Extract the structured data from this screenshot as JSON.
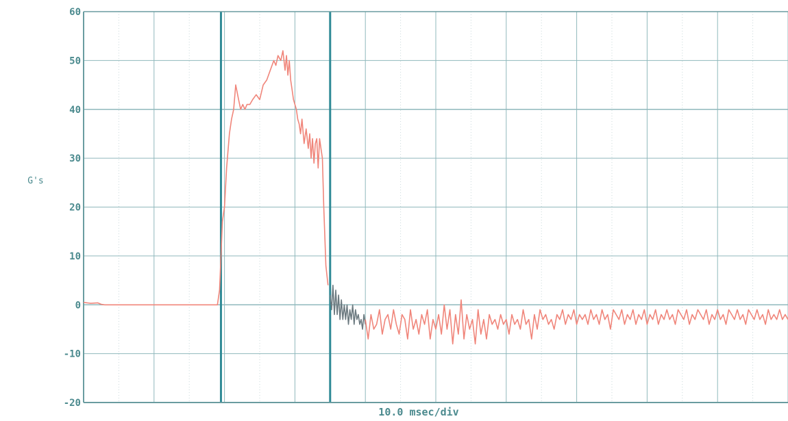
{
  "chart_data": {
    "type": "line",
    "title": "",
    "xlabel": "10.0 msec/div",
    "ylabel": "G's",
    "ylim": [
      -20,
      60
    ],
    "yticks": [
      60,
      50,
      40,
      30,
      20,
      10,
      0,
      -10,
      -20
    ],
    "x_divisions": 10,
    "xlim": [
      0,
      100
    ],
    "x_unit": "msec",
    "grid": true,
    "colors": {
      "background": "#ffffff",
      "grid": "#8fb8bc",
      "grid_minor": "#c9d9da",
      "frame": "#6a9ca0",
      "tick_label": "#4b8a8e",
      "marker": "#2f8a96",
      "trace": "#f0857a",
      "trace_dark": "#6c7a80"
    },
    "markers_x": [
      19.5,
      35.0
    ],
    "series": [
      {
        "color_key": "trace",
        "x": [
          0,
          1,
          2,
          2.5,
          3,
          10,
          19.0,
          19.3,
          19.5,
          19.7,
          20.0,
          20.3,
          20.7,
          21.0,
          21.3,
          21.6,
          22.0,
          22.3,
          22.6,
          22.9,
          23.2,
          23.6,
          24.0,
          24.5,
          25.0,
          25.5,
          26.0,
          26.5,
          27.0,
          27.3,
          27.6,
          28.0,
          28.3,
          28.6,
          28.8,
          29.0,
          29.2,
          29.4,
          29.6,
          29.8,
          30.0,
          30.2,
          30.4,
          30.6,
          30.8,
          31.0,
          31.3,
          31.6,
          31.9,
          32.1,
          32.3,
          32.5,
          32.7,
          32.9,
          33.1,
          33.3,
          33.5,
          33.7,
          33.9,
          34.1,
          34.4,
          34.7
        ],
        "y": [
          0.5,
          0.3,
          0.4,
          0.1,
          0.0,
          0.0,
          0.0,
          3,
          10,
          17,
          20,
          28,
          35,
          38,
          40,
          45,
          42,
          40,
          41,
          40,
          41,
          41,
          42,
          43,
          42,
          45,
          46,
          48,
          50,
          49,
          51,
          50,
          52,
          48,
          51,
          47,
          50,
          46,
          44,
          42,
          41,
          40,
          38,
          37,
          35,
          38,
          33,
          36,
          32,
          35,
          30,
          34,
          29,
          33,
          34,
          28,
          34,
          32,
          30,
          20,
          8,
          4
        ]
      },
      {
        "color_key": "trace_dark",
        "x": [
          35.0,
          35.2,
          35.4,
          35.6,
          35.8,
          36.0,
          36.2,
          36.4,
          36.6,
          36.8,
          37.0,
          37.2,
          37.4,
          37.6,
          37.8,
          38.0,
          38.2,
          38.4,
          38.6,
          38.8,
          39.0,
          39.2,
          39.4,
          39.6,
          39.8,
          40.0
        ],
        "y": [
          2,
          -1,
          4,
          -2,
          3,
          -2,
          2,
          -3,
          1,
          -3,
          0,
          -3,
          0,
          -4,
          -1,
          -3,
          0,
          -4,
          -1,
          -3,
          -2,
          -4,
          -3,
          -5,
          -2,
          -4
        ]
      },
      {
        "color_key": "trace",
        "x": [
          40.0,
          40.4,
          40.8,
          41.2,
          41.6,
          42.0,
          42.4,
          42.8,
          43.2,
          43.6,
          44.0,
          44.4,
          44.8,
          45.2,
          45.6,
          46.0,
          46.4,
          46.8,
          47.2,
          47.6,
          48.0,
          48.4,
          48.8,
          49.2,
          49.6,
          50.0,
          50.4,
          50.8,
          51.2,
          51.6,
          52.0,
          52.4,
          52.8,
          53.2,
          53.6,
          54.0,
          54.4,
          54.8,
          55.2,
          55.6,
          56.0,
          56.4,
          56.8,
          57.2,
          57.6,
          58.0,
          58.4,
          58.8,
          59.2,
          59.6,
          60.0,
          60.4,
          60.8,
          61.2,
          61.6,
          62.0,
          62.4,
          62.8,
          63.2,
          63.6,
          64.0,
          64.4,
          64.8,
          65.2,
          65.6,
          66.0,
          66.4,
          66.8,
          67.2,
          67.6,
          68.0,
          68.4,
          68.8,
          69.2,
          69.6,
          70.0,
          70.4,
          70.8,
          71.2,
          71.6,
          72.0,
          72.4,
          72.8,
          73.2,
          73.6,
          74.0,
          74.4,
          74.8,
          75.2,
          75.6,
          76.0,
          76.4,
          76.8,
          77.2,
          77.6,
          78.0,
          78.4,
          78.8,
          79.2,
          79.6,
          80.0,
          80.4,
          80.8,
          81.2,
          81.6,
          82.0,
          82.4,
          82.8,
          83.2,
          83.6,
          84.0,
          84.4,
          84.8,
          85.2,
          85.6,
          86.0,
          86.4,
          86.8,
          87.2,
          87.6,
          88.0,
          88.4,
          88.8,
          89.2,
          89.6,
          90.0,
          90.4,
          90.8,
          91.2,
          91.6,
          92.0,
          92.4,
          92.8,
          93.2,
          93.6,
          94.0,
          94.4,
          94.8,
          95.2,
          95.6,
          96.0,
          96.4,
          96.8,
          97.2,
          97.6,
          98.0,
          98.4,
          98.8,
          99.2,
          99.6,
          100.0
        ],
        "y": [
          -3,
          -7,
          -2,
          -5,
          -4,
          -1,
          -6,
          -3,
          -2,
          -5,
          -1,
          -4,
          -6,
          -2,
          -3,
          -7,
          -1,
          -5,
          -3,
          -6,
          -2,
          -4,
          -1,
          -7,
          -3,
          -5,
          -2,
          -6,
          0,
          -5,
          -1,
          -8,
          -2,
          -6,
          1,
          -7,
          -2,
          -5,
          -3,
          -8,
          -1,
          -6,
          -3,
          -7,
          -2,
          -4,
          -3,
          -5,
          -2,
          -4,
          -3,
          -6,
          -2,
          -4,
          -3,
          -5,
          -1,
          -4,
          -3,
          -7,
          -2,
          -5,
          -1,
          -3,
          -2,
          -4,
          -3,
          -5,
          -2,
          -3,
          -1,
          -4,
          -2,
          -3,
          -1,
          -4,
          -2,
          -3,
          -2,
          -4,
          -1,
          -3,
          -2,
          -4,
          -1,
          -3,
          -2,
          -5,
          -1,
          -2,
          -3,
          -1,
          -4,
          -2,
          -3,
          -1,
          -4,
          -2,
          -3,
          -1,
          -4,
          -2,
          -3,
          -1,
          -4,
          -2,
          -3,
          -1,
          -3,
          -2,
          -4,
          -1,
          -2,
          -3,
          -1,
          -4,
          -2,
          -3,
          -1,
          -2,
          -3,
          -1,
          -4,
          -2,
          -3,
          -1,
          -3,
          -2,
          -4,
          -1,
          -2,
          -3,
          -1,
          -3,
          -2,
          -4,
          -1,
          -2,
          -3,
          -1,
          -3,
          -2,
          -4,
          -1,
          -3,
          -2,
          -3,
          -1,
          -3,
          -2,
          -3
        ]
      }
    ]
  }
}
